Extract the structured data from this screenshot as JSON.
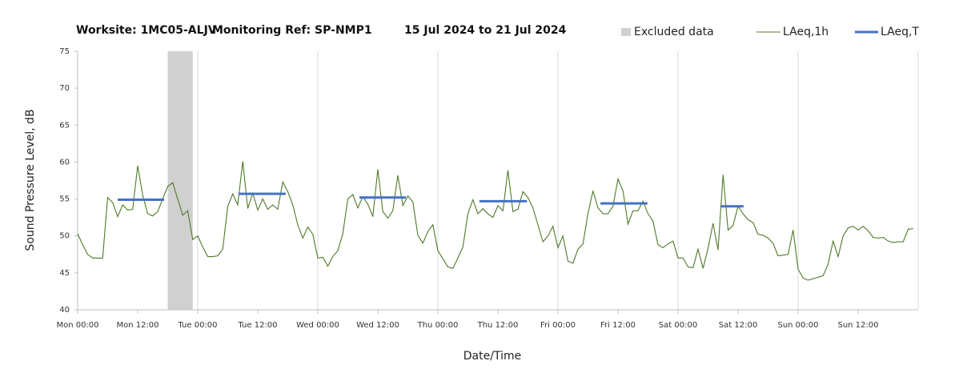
{
  "chart_data": {
    "type": "line",
    "title": "Worksite: 1MC05-ALJV",
    "monitoring_ref": "Monitoring Ref: SP-NMP1",
    "period": "15 Jul 2024 to 21 Jul 2024",
    "x_label": "Date/Time",
    "y_label": "Sound Pressure Level, dB",
    "xlim": [
      0,
      168
    ],
    "ylim": [
      40,
      75
    ],
    "yticks": [
      40,
      45,
      50,
      55,
      60,
      65,
      70,
      75
    ],
    "xticks": [
      {
        "value": 0,
        "label": "Mon 00:00"
      },
      {
        "value": 12,
        "label": "Mon 12:00"
      },
      {
        "value": 24,
        "label": "Tue 00:00"
      },
      {
        "value": 36,
        "label": "Tue 12:00"
      },
      {
        "value": 48,
        "label": "Wed 00:00"
      },
      {
        "value": 60,
        "label": "Wed 12:00"
      },
      {
        "value": 72,
        "label": "Thu 00:00"
      },
      {
        "value": 84,
        "label": "Thu 12:00"
      },
      {
        "value": 96,
        "label": "Fri 00:00"
      },
      {
        "value": 108,
        "label": "Fri 12:00"
      },
      {
        "value": 120,
        "label": "Sat 00:00"
      },
      {
        "value": 132,
        "label": "Sat 12:00"
      },
      {
        "value": 144,
        "label": "Sun 00:00"
      },
      {
        "value": 156,
        "label": "Sun 12:00"
      }
    ],
    "grid_x": [
      0,
      24,
      48,
      72,
      96,
      120,
      144,
      168
    ],
    "excluded": {
      "name": "Excluded data",
      "color": "#d0d0d0",
      "start": 18,
      "end": 23
    },
    "x": [
      0,
      1,
      2,
      3,
      4,
      5,
      6,
      7,
      8,
      9,
      10,
      11,
      12,
      13,
      14,
      15,
      16,
      17,
      18,
      19,
      20,
      21,
      22,
      23,
      24,
      25,
      26,
      27,
      28,
      29,
      30,
      31,
      32,
      33,
      34,
      35,
      36,
      37,
      38,
      39,
      40,
      41,
      42,
      43,
      44,
      45,
      46,
      47,
      48,
      49,
      50,
      51,
      52,
      53,
      54,
      55,
      56,
      57,
      58,
      59,
      60,
      61,
      62,
      63,
      64,
      65,
      66,
      67,
      68,
      69,
      70,
      71,
      72,
      73,
      74,
      75,
      76,
      77,
      78,
      79,
      80,
      81,
      82,
      83,
      84,
      85,
      86,
      87,
      88,
      89,
      90,
      91,
      92,
      93,
      94,
      95,
      96,
      97,
      98,
      99,
      100,
      101,
      102,
      103,
      104,
      105,
      106,
      107,
      108,
      109,
      110,
      111,
      112,
      113,
      114,
      115,
      116,
      117,
      118,
      119,
      120,
      121,
      122,
      123,
      124,
      125,
      126,
      127,
      128,
      129,
      130,
      131,
      132,
      133,
      134,
      135,
      136,
      137,
      138,
      139,
      140,
      141,
      142,
      143,
      144,
      145,
      146,
      147,
      148,
      149,
      150,
      151,
      152,
      153,
      154,
      155,
      156,
      157,
      158,
      159,
      160,
      161,
      162,
      163,
      164,
      165,
      166,
      167
    ],
    "series": [
      {
        "name": "LAeq,1h",
        "color": "#4f7a28",
        "values": [
          50.3,
          48.8,
          47.5,
          47.0,
          47.0,
          47.0,
          55.2,
          54.5,
          52.6,
          54.2,
          53.5,
          53.6,
          59.5,
          55.5,
          53.0,
          52.7,
          53.3,
          55.0,
          56.7,
          57.2,
          55.0,
          52.8,
          53.4,
          49.5,
          50.0,
          48.5,
          47.2,
          47.2,
          47.3,
          48.2,
          54.0,
          55.7,
          54.2,
          60.1,
          53.7,
          55.8,
          53.5,
          55.0,
          53.6,
          54.2,
          53.6,
          57.3,
          56.0,
          54.2,
          51.5,
          49.7,
          51.2,
          50.2,
          47.0,
          47.1,
          45.9,
          47.2,
          48.0,
          50.3,
          55.0,
          55.6,
          53.8,
          55.3,
          54.3,
          52.6,
          59.0,
          53.3,
          52.4,
          53.4,
          58.2,
          54.1,
          55.4,
          54.6,
          50.1,
          49.0,
          50.6,
          51.5,
          48.0,
          46.9,
          45.8,
          45.6,
          47.0,
          48.5,
          53.0,
          54.9,
          53.0,
          53.7,
          53.0,
          52.5,
          54.1,
          53.4,
          58.9,
          53.3,
          53.6,
          56.0,
          55.2,
          53.8,
          51.5,
          49.2,
          50.0,
          51.3,
          48.4,
          50.0,
          46.6,
          46.3,
          48.2,
          48.9,
          53.0,
          56.1,
          53.8,
          53.0,
          53.0,
          54.0,
          57.7,
          56.1,
          51.6,
          53.4,
          53.4,
          54.7,
          53.0,
          52.0,
          48.8,
          48.4,
          48.9,
          49.3,
          47.0,
          47.0,
          45.8,
          45.7,
          48.2,
          45.6,
          48.3,
          51.7,
          48.1,
          58.3,
          50.8,
          51.4,
          54.0,
          53.0,
          52.2,
          51.8,
          50.2,
          50.1,
          49.7,
          49.0,
          47.3,
          47.4,
          47.5,
          50.8,
          45.5,
          44.3,
          44.0,
          44.2,
          44.4,
          44.6,
          46.2,
          49.3,
          47.2,
          50.0,
          51.1,
          51.3,
          50.8,
          51.3,
          50.7,
          49.8,
          49.7,
          49.8,
          49.3,
          49.1,
          49.2,
          49.2,
          50.9,
          51.0
        ]
      },
      {
        "name": "LAeq,T",
        "color": "#4472c4",
        "segments": [
          {
            "start": 8,
            "end": 17.3,
            "value": 54.9
          },
          {
            "start": 32.2,
            "end": 41.6,
            "value": 55.7
          },
          {
            "start": 56.3,
            "end": 65.6,
            "value": 55.2
          },
          {
            "start": 80.3,
            "end": 89.8,
            "value": 54.7
          },
          {
            "start": 104.5,
            "end": 113.9,
            "value": 54.4
          },
          {
            "start": 128.6,
            "end": 133.1,
            "value": 54.0
          }
        ]
      }
    ]
  }
}
